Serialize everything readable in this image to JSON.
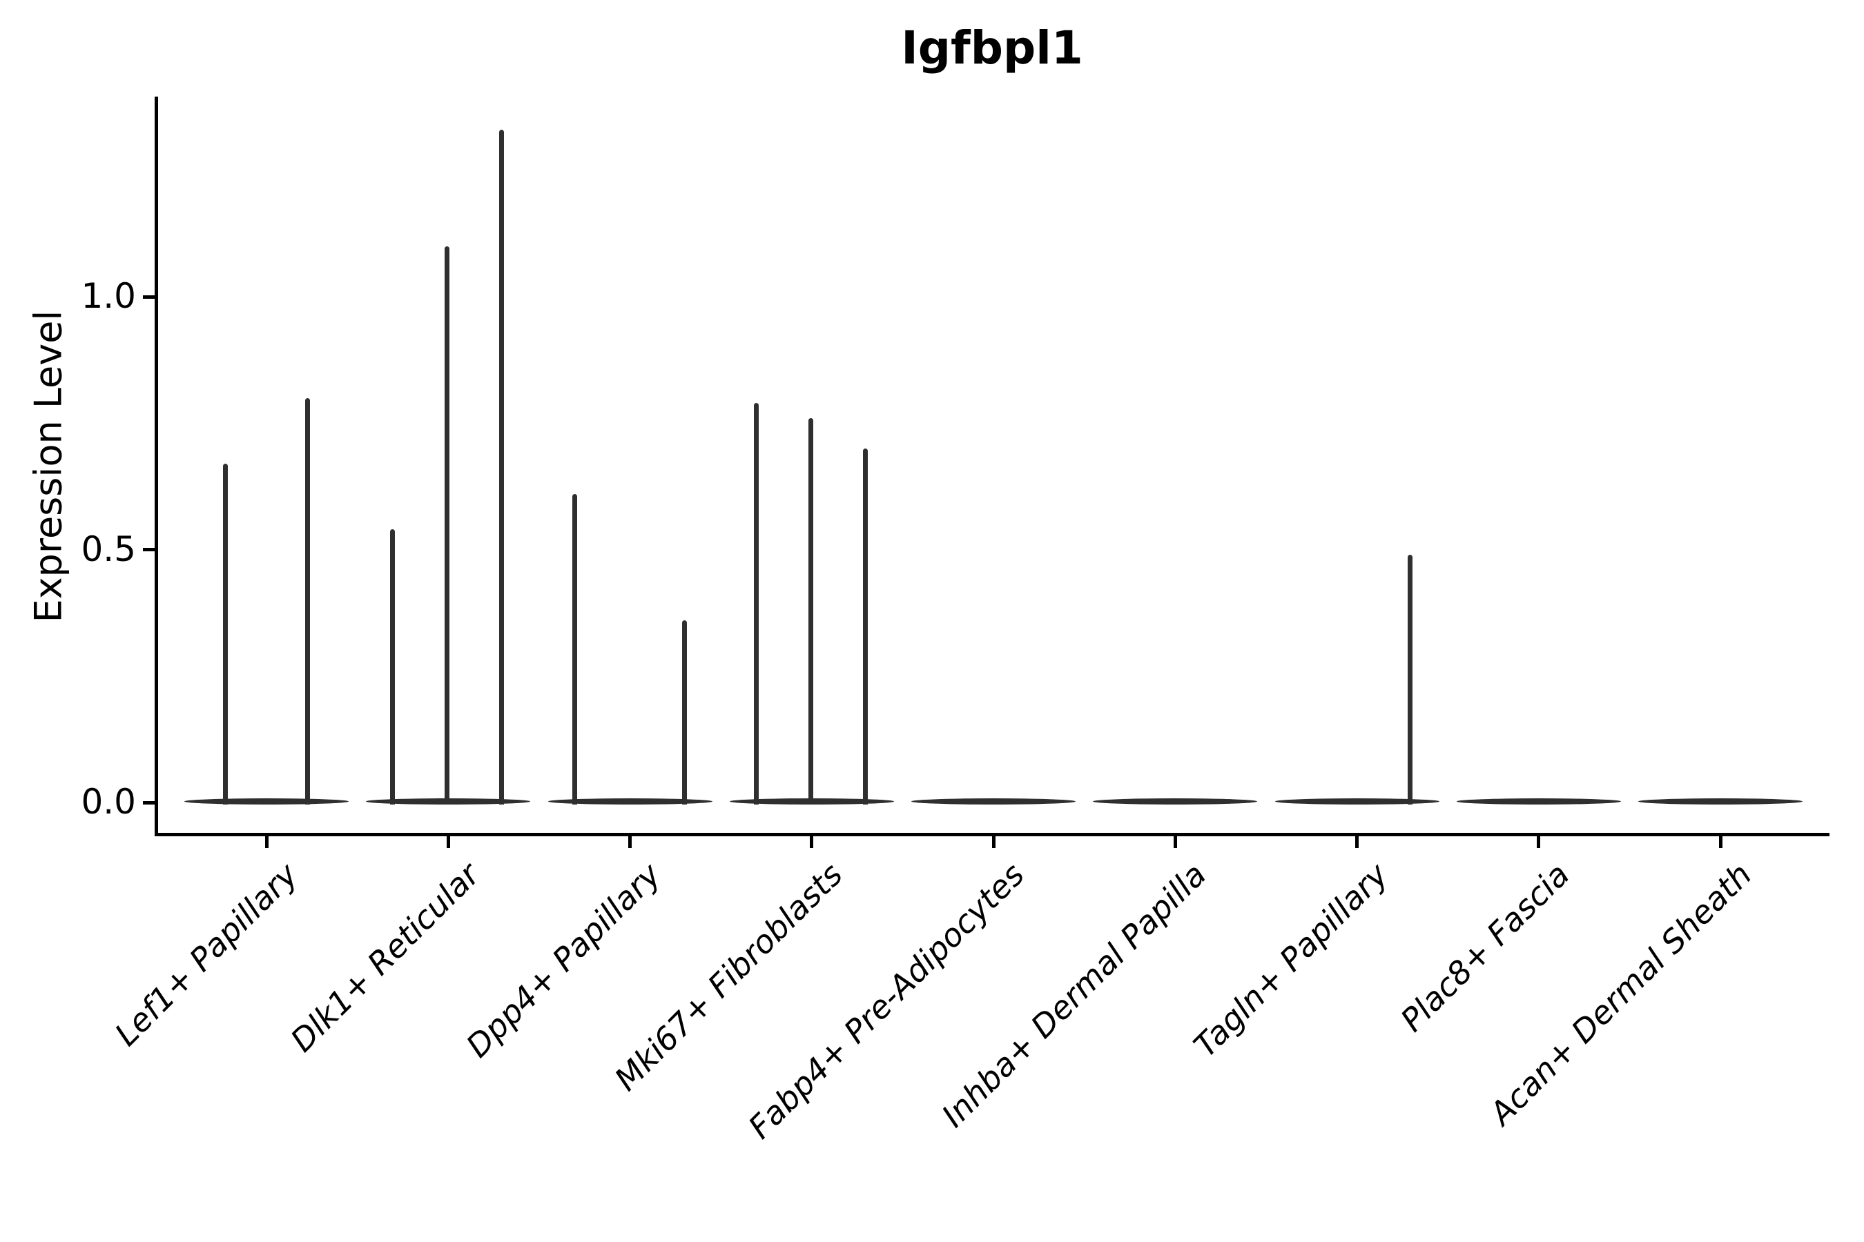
{
  "title": "Igfbpl1",
  "y_axis": {
    "label": "Expression Level",
    "tick_labels": [
      "0.0",
      "0.5",
      "1.0"
    ],
    "tick_values": [
      0.0,
      0.5,
      1.0
    ]
  },
  "x_axis": {
    "categories": [
      "Lef1+ Papillary",
      "Dlk1+ Reticular",
      "Dpp4+ Papillary",
      "Mki67+ Fibroblasts",
      "Fabp4+ Pre-Adipocytes",
      "Inhba+ Dermal Papilla",
      "Tagln+ Papillary",
      "Plac8+ Fascia",
      "Acan+ Dermal Sheath"
    ]
  },
  "chart_data": {
    "type": "violin",
    "title": "Igfbpl1",
    "xlabel": "",
    "ylabel": "Expression Level",
    "yticks": [
      0.0,
      0.5,
      1.0
    ],
    "ylim": [
      -0.07,
      1.39
    ],
    "grid": false,
    "legend": null,
    "categories": [
      "Lef1+ Papillary",
      "Dlk1+ Reticular",
      "Dpp4+ Papillary",
      "Mki67+ Fibroblasts",
      "Fabp4+ Pre-Adipocytes",
      "Inhba+ Dermal Papilla",
      "Tagln+ Papillary",
      "Plac8+ Fascia",
      "Acan+ Dermal Sheath"
    ],
    "baseline_expression": 0.0,
    "note": "Most cells express 0; each violin is a flat disc at 0 with a thin spike up to the max expression value. Dodge = horizontal offset (px) of each sub-violin spike from its category tick.",
    "groups": [
      {
        "category": "Lef1+ Papillary",
        "violins": [
          {
            "dodge": -60,
            "max_expression": 0.67
          },
          {
            "dodge": 59,
            "max_expression": 0.8
          }
        ]
      },
      {
        "category": "Dlk1+ Reticular",
        "violins": [
          {
            "dodge": -81,
            "max_expression": 0.54
          },
          {
            "dodge": -2,
            "max_expression": 1.1
          },
          {
            "dodge": 77,
            "max_expression": 1.33
          }
        ]
      },
      {
        "category": "Dpp4+ Papillary",
        "violins": [
          {
            "dodge": -80,
            "max_expression": 0.61
          },
          {
            "dodge": 79,
            "max_expression": 0.36
          }
        ]
      },
      {
        "category": "Mki67+ Fibroblasts",
        "violins": [
          {
            "dodge": -80,
            "max_expression": 0.79
          },
          {
            "dodge": -1,
            "max_expression": 0.76
          },
          {
            "dodge": 78,
            "max_expression": 0.7
          }
        ]
      },
      {
        "category": "Fabp4+ Pre-Adipocytes",
        "violins": []
      },
      {
        "category": "Inhba+ Dermal Papilla",
        "violins": []
      },
      {
        "category": "Tagln+ Papillary",
        "violins": [
          {
            "dodge": 77,
            "max_expression": 0.49
          }
        ]
      },
      {
        "category": "Plac8+ Fascia",
        "violins": []
      },
      {
        "category": "Acan+ Dermal Sheath",
        "violins": []
      }
    ],
    "colors": {
      "violin": "#2f2f2f",
      "axis": "#000000",
      "text": "#000000",
      "background": "#ffffff"
    }
  }
}
